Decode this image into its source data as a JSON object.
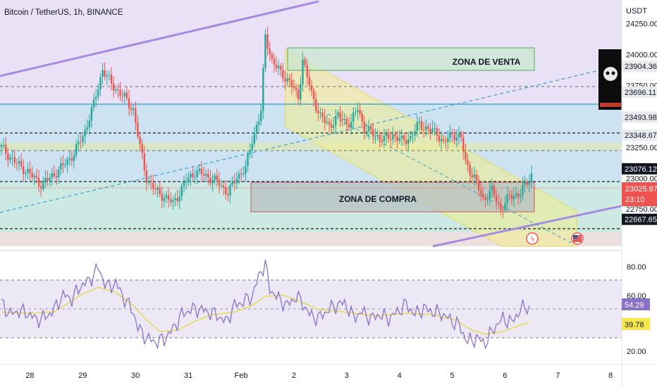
{
  "header": {
    "title": "Bitcoin / TetherUS, 1h, BINANCE",
    "currency": "USDT"
  },
  "chart_data": {
    "type": "candlestick",
    "symbol": "Bitcoin / TetherUS",
    "interval": "1h",
    "exchange": "BINANCE",
    "x_ticks": [
      "28",
      "29",
      "30",
      "31",
      "Feb",
      "2",
      "3",
      "4",
      "5",
      "6",
      "7",
      "8"
    ],
    "y_ticks": [
      "24250.00",
      "24000.00",
      "23750.00",
      "23500.00",
      "23250.00",
      "23000.00",
      "22750.00"
    ],
    "ylim": [
      22450,
      24440
    ],
    "current_price": 23025.87,
    "countdown": "23:10",
    "price_labels": [
      {
        "value": "23904.36",
        "style": "light"
      },
      {
        "value": "23696.11",
        "style": "light"
      },
      {
        "value": "23493.98",
        "style": "light"
      },
      {
        "value": "23348.67",
        "style": "light"
      },
      {
        "value": "23076.12",
        "style": "dark"
      },
      {
        "value": "22667.65",
        "style": "dark"
      }
    ],
    "annotations": {
      "sell_zone": "ZONA DE VENTA",
      "buy_zone": "ZONA DE COMPRA"
    },
    "price_path": [
      [
        0,
        23250
      ],
      [
        6,
        23130
      ],
      [
        12,
        23050
      ],
      [
        18,
        22950
      ],
      [
        22,
        23000
      ],
      [
        28,
        23100
      ],
      [
        33,
        23200
      ],
      [
        38,
        23380
      ],
      [
        42,
        23600
      ],
      [
        46,
        23880
      ],
      [
        50,
        23760
      ],
      [
        56,
        23650
      ],
      [
        60,
        23550
      ],
      [
        63,
        23250
      ],
      [
        66,
        23000
      ],
      [
        70,
        22900
      ],
      [
        74,
        22850
      ],
      [
        78,
        22800
      ],
      [
        81,
        22880
      ],
      [
        84,
        22980
      ],
      [
        88,
        23050
      ],
      [
        92,
        23030
      ],
      [
        95,
        23000
      ],
      [
        99,
        22960
      ],
      [
        103,
        22880
      ],
      [
        107,
        23010
      ],
      [
        111,
        23080
      ],
      [
        114,
        23310
      ],
      [
        118,
        23540
      ],
      [
        120,
        24150
      ],
      [
        123,
        23950
      ],
      [
        127,
        23850
      ],
      [
        131,
        23780
      ],
      [
        135,
        23650
      ],
      [
        137,
        23960
      ],
      [
        141,
        23680
      ],
      [
        145,
        23500
      ],
      [
        149,
        23420
      ],
      [
        153,
        23500
      ],
      [
        157,
        23450
      ],
      [
        159,
        23450
      ],
      [
        162,
        23570
      ],
      [
        165,
        23400
      ],
      [
        169,
        23360
      ],
      [
        174,
        23310
      ],
      [
        178,
        23350
      ],
      [
        182,
        23300
      ],
      [
        186,
        23330
      ],
      [
        190,
        23440
      ],
      [
        194,
        23390
      ],
      [
        198,
        23370
      ],
      [
        201,
        23280
      ],
      [
        205,
        23360
      ],
      [
        209,
        23320
      ],
      [
        211,
        23130
      ],
      [
        215,
        23000
      ],
      [
        219,
        22830
      ],
      [
        223,
        22900
      ],
      [
        227,
        22750
      ],
      [
        231,
        22850
      ],
      [
        236,
        22880
      ],
      [
        239,
        22970
      ],
      [
        241,
        23030
      ]
    ],
    "rsi": {
      "levels": [
        "80.00",
        "60.00",
        "20.00"
      ],
      "rsi_value": "54.29",
      "ma_value": "39.78",
      "ylim": [
        13,
        95
      ],
      "rsi_path": [
        [
          0,
          57
        ],
        [
          4,
          48
        ],
        [
          8,
          51
        ],
        [
          12,
          49
        ],
        [
          16,
          44
        ],
        [
          20,
          46
        ],
        [
          24,
          52
        ],
        [
          28,
          63
        ],
        [
          32,
          60
        ],
        [
          36,
          70
        ],
        [
          40,
          74
        ],
        [
          44,
          84
        ],
        [
          48,
          69
        ],
        [
          52,
          72
        ],
        [
          56,
          60
        ],
        [
          60,
          50
        ],
        [
          62,
          38
        ],
        [
          66,
          30
        ],
        [
          70,
          27
        ],
        [
          74,
          29
        ],
        [
          78,
          37
        ],
        [
          82,
          48
        ],
        [
          86,
          52
        ],
        [
          90,
          52
        ],
        [
          94,
          50
        ],
        [
          98,
          48
        ],
        [
          102,
          42
        ],
        [
          106,
          55
        ],
        [
          110,
          58
        ],
        [
          114,
          62
        ],
        [
          118,
          82
        ],
        [
          120,
          86
        ],
        [
          122,
          68
        ],
        [
          126,
          60
        ],
        [
          130,
          55
        ],
        [
          134,
          62
        ],
        [
          137,
          57
        ],
        [
          140,
          48
        ],
        [
          144,
          45
        ],
        [
          148,
          51
        ],
        [
          152,
          55
        ],
        [
          156,
          57
        ],
        [
          160,
          46
        ],
        [
          164,
          50
        ],
        [
          168,
          45
        ],
        [
          172,
          48
        ],
        [
          176,
          45
        ],
        [
          180,
          50
        ],
        [
          184,
          56
        ],
        [
          188,
          48
        ],
        [
          192,
          53
        ],
        [
          196,
          50
        ],
        [
          200,
          49
        ],
        [
          204,
          44
        ],
        [
          208,
          40
        ],
        [
          212,
          27
        ],
        [
          216,
          30
        ],
        [
          220,
          26
        ],
        [
          224,
          38
        ],
        [
          228,
          45
        ],
        [
          232,
          42
        ],
        [
          236,
          52
        ],
        [
          240,
          55
        ]
      ],
      "ma_path": [
        [
          0,
          50
        ],
        [
          12,
          49
        ],
        [
          24,
          50
        ],
        [
          36,
          63
        ],
        [
          44,
          69
        ],
        [
          52,
          65
        ],
        [
          60,
          55
        ],
        [
          66,
          44
        ],
        [
          72,
          35
        ],
        [
          80,
          36
        ],
        [
          88,
          43
        ],
        [
          96,
          48
        ],
        [
          106,
          50
        ],
        [
          114,
          55
        ],
        [
          120,
          62
        ],
        [
          128,
          63
        ],
        [
          136,
          58
        ],
        [
          144,
          52
        ],
        [
          156,
          50
        ],
        [
          170,
          47
        ],
        [
          184,
          49
        ],
        [
          196,
          48
        ],
        [
          206,
          44
        ],
        [
          214,
          36
        ],
        [
          220,
          33
        ],
        [
          228,
          35
        ],
        [
          236,
          40
        ],
        [
          240,
          42
        ]
      ]
    }
  }
}
